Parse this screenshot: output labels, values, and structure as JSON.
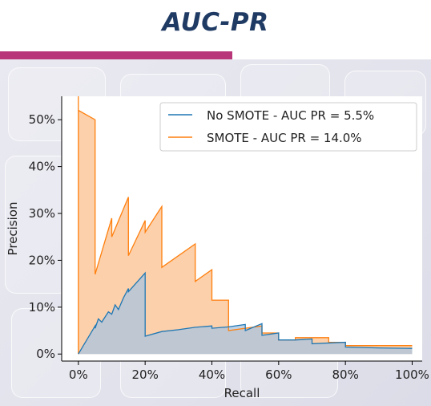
{
  "slide": {
    "title": "AUC-PR",
    "accent_color": "#b8357a",
    "title_color": "#1f3a63"
  },
  "chart_data": {
    "type": "area",
    "title": "",
    "xlabel": "Recall",
    "ylabel": "Precision",
    "xlim": [
      -0.05,
      1.03
    ],
    "ylim": [
      -0.015,
      0.55
    ],
    "x_ticks": [
      0,
      0.2,
      0.4,
      0.6,
      0.8,
      1.0
    ],
    "x_tick_labels": [
      "0%",
      "20%",
      "40%",
      "60%",
      "80%",
      "100%"
    ],
    "y_ticks": [
      0,
      0.1,
      0.2,
      0.3,
      0.4,
      0.5
    ],
    "y_tick_labels": [
      "0%",
      "10%",
      "20%",
      "30%",
      "40%",
      "50%"
    ],
    "grid": false,
    "legend_position": "top-right",
    "series": [
      {
        "name": "No SMOTE - AUC PR = 5.5%",
        "color": "#1f77b4",
        "fill": "#a9c4df",
        "points": [
          [
            0,
            0
          ],
          [
            0.05,
            0.06
          ],
          [
            0.05,
            0.055
          ],
          [
            0.06,
            0.075
          ],
          [
            0.07,
            0.068
          ],
          [
            0.09,
            0.09
          ],
          [
            0.1,
            0.085
          ],
          [
            0.11,
            0.105
          ],
          [
            0.12,
            0.095
          ],
          [
            0.135,
            0.12
          ],
          [
            0.15,
            0.14
          ],
          [
            0.15,
            0.133
          ],
          [
            0.2,
            0.173
          ],
          [
            0.2,
            0.038
          ],
          [
            0.25,
            0.048
          ],
          [
            0.3,
            0.052
          ],
          [
            0.35,
            0.057
          ],
          [
            0.4,
            0.06
          ],
          [
            0.4,
            0.055
          ],
          [
            0.45,
            0.058
          ],
          [
            0.5,
            0.063
          ],
          [
            0.5,
            0.05
          ],
          [
            0.55,
            0.065
          ],
          [
            0.55,
            0.04
          ],
          [
            0.6,
            0.045
          ],
          [
            0.6,
            0.03
          ],
          [
            0.65,
            0.03
          ],
          [
            0.7,
            0.032
          ],
          [
            0.7,
            0.022
          ],
          [
            0.8,
            0.025
          ],
          [
            0.8,
            0.015
          ],
          [
            0.9,
            0.013
          ],
          [
            1.0,
            0.012
          ]
        ]
      },
      {
        "name": "SMOTE - AUC PR = 14.0%",
        "color": "#ff7f0e",
        "fill": "#fcc89b",
        "points": [
          [
            0,
            0
          ],
          [
            0,
            0.55
          ],
          [
            0,
            0.52
          ],
          [
            0.05,
            0.5
          ],
          [
            0.05,
            0.17
          ],
          [
            0.1,
            0.29
          ],
          [
            0.1,
            0.25
          ],
          [
            0.15,
            0.335
          ],
          [
            0.15,
            0.21
          ],
          [
            0.2,
            0.285
          ],
          [
            0.2,
            0.26
          ],
          [
            0.25,
            0.315
          ],
          [
            0.25,
            0.185
          ],
          [
            0.35,
            0.235
          ],
          [
            0.35,
            0.155
          ],
          [
            0.4,
            0.18
          ],
          [
            0.4,
            0.115
          ],
          [
            0.45,
            0.115
          ],
          [
            0.45,
            0.05
          ],
          [
            0.55,
            0.06
          ],
          [
            0.55,
            0.045
          ],
          [
            0.6,
            0.045
          ],
          [
            0.6,
            0.03
          ],
          [
            0.65,
            0.03
          ],
          [
            0.65,
            0.035
          ],
          [
            0.75,
            0.035
          ],
          [
            0.75,
            0.025
          ],
          [
            0.8,
            0.025
          ],
          [
            0.8,
            0.018
          ],
          [
            0.9,
            0.018
          ],
          [
            1.0,
            0.018
          ]
        ]
      }
    ]
  }
}
